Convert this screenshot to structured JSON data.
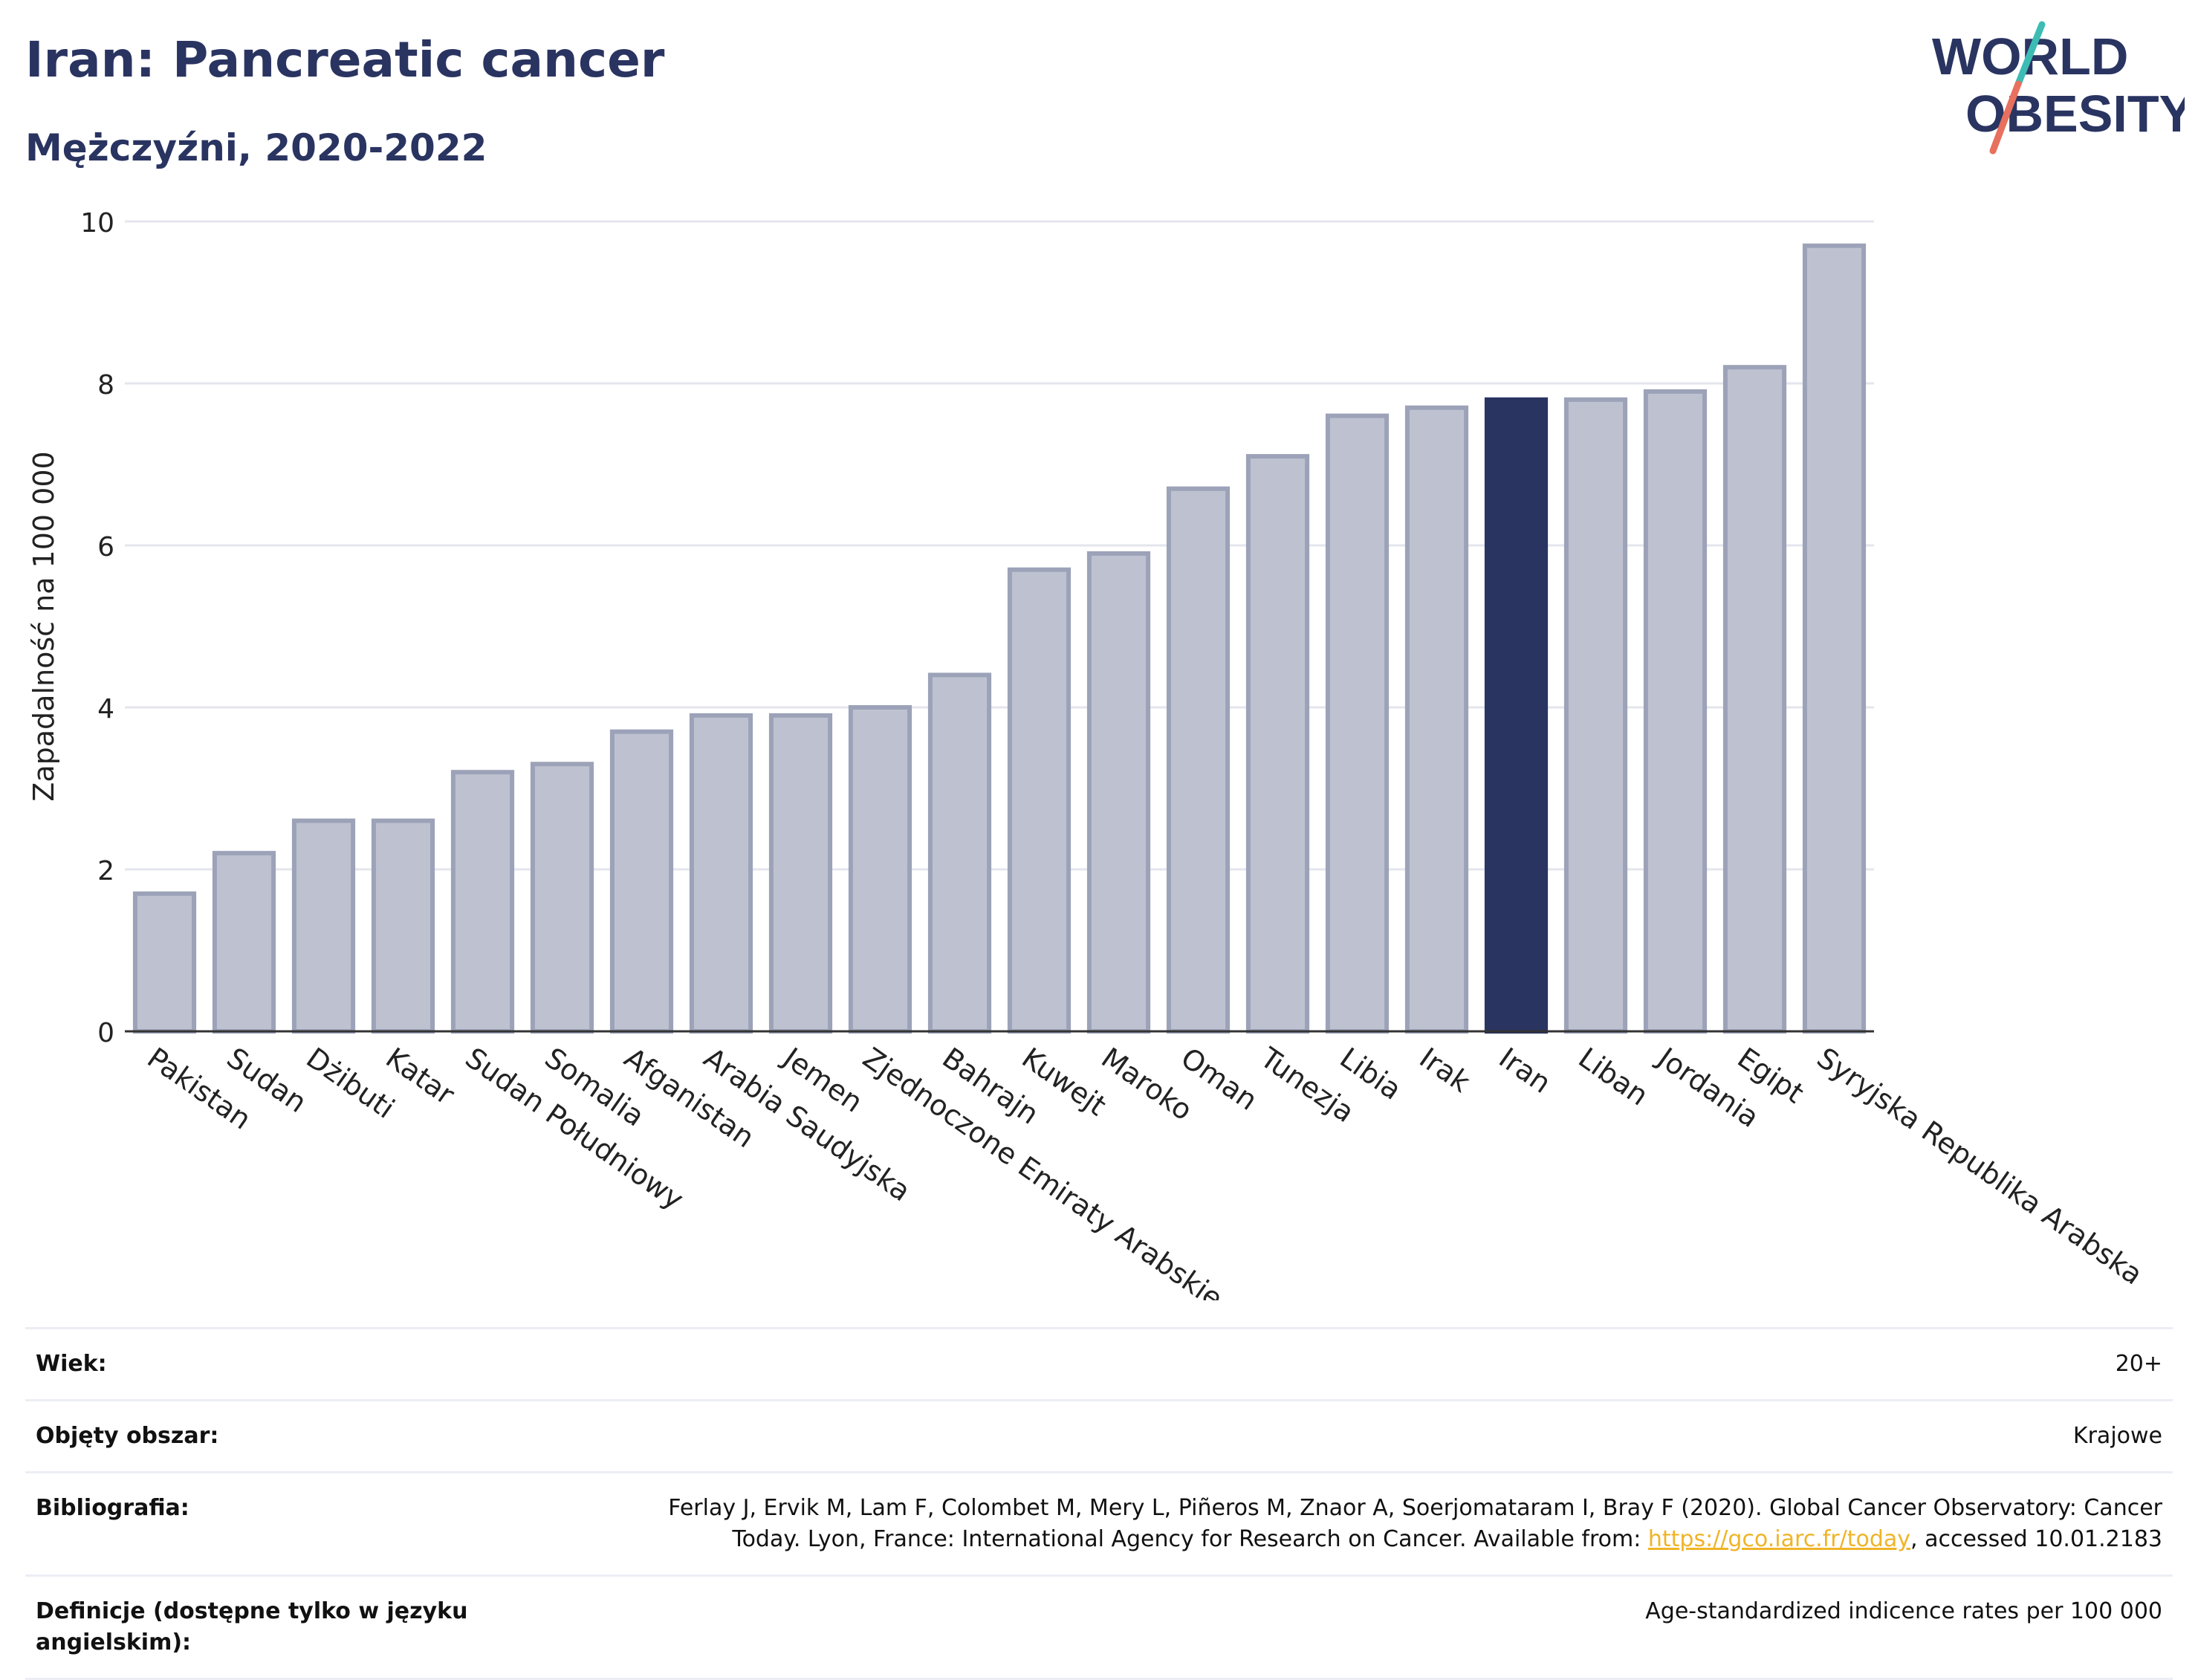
{
  "header": {
    "title": "Iran: Pancreatic cancer",
    "subtitle": "Mężczyźni, 2020-2022"
  },
  "logo": {
    "line1": "WORLD",
    "line2": "OBESITY"
  },
  "colors": {
    "highlight": "#2a3461",
    "bar_fill": "#bec2d0",
    "bar_stroke": "#9ca2b8",
    "grid": "#e4e6ee",
    "logo_teal": "#3dbcb4",
    "logo_coral": "#e8705e"
  },
  "chart_data": {
    "type": "bar",
    "title": "Iran: Pancreatic cancer",
    "subtitle": "Mężczyźni, 2020-2022",
    "xlabel": "",
    "ylabel": "Zapadalność na 100 000",
    "ylim": [
      0,
      10
    ],
    "yticks": [
      0,
      2,
      4,
      6,
      8,
      10
    ],
    "grid": true,
    "highlight_category": "Iran",
    "categories": [
      "Pakistan",
      "Sudan",
      "Dżibuti",
      "Katar",
      "Sudan Południowy",
      "Somalia",
      "Afganistan",
      "Arabia Saudyjska",
      "Jemen",
      "Zjednoczone Emiraty Arabskie",
      "Bahrajn",
      "Kuwejt",
      "Maroko",
      "Oman",
      "Tunezja",
      "Libia",
      "Irak",
      "Iran",
      "Liban",
      "Jordania",
      "Egipt",
      "Syryjska Republika Arabska"
    ],
    "values": [
      1.7,
      2.2,
      2.6,
      2.6,
      3.2,
      3.3,
      3.7,
      3.9,
      3.9,
      4.0,
      4.4,
      5.7,
      5.9,
      6.7,
      7.1,
      7.6,
      7.7,
      7.8,
      7.8,
      7.9,
      8.2,
      9.7
    ]
  },
  "meta": {
    "age": {
      "label": "Wiek:",
      "value": "20+"
    },
    "coverage": {
      "label": "Objęty obszar:",
      "value": "Krajowe"
    },
    "bibliography": {
      "label": "Bibliografia:",
      "line1": "Ferlay J, Ervik M, Lam F, Colombet M, Mery L, Piñeros M, Znaor A, Soerjomataram I, Bray F (2020). Global Cancer Observatory: Cancer",
      "line2_pre": "Today. Lyon, France: International Agency for Research on Cancer. Available from: ",
      "link": "https://gco.iarc.fr/today",
      "line2_post": ", accessed 10.01.2183"
    },
    "definitions": {
      "label": "Definicje (dostępne tylko w języku angielskim):",
      "value": "Age-standardized indicence rates per 100 000"
    }
  }
}
